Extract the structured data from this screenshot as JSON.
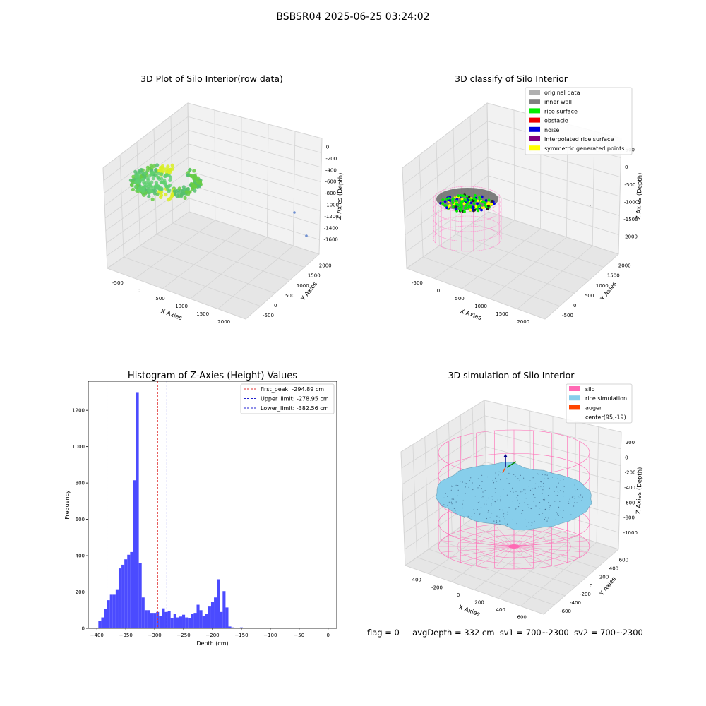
{
  "suptitle": "BSBSR04 2025-06-25 03:24:02",
  "footer": {
    "flag": "flag = 0",
    "avg_depth": "avgDepth = 332 cm",
    "sv1": "sv1 = 700~2300",
    "sv2": "sv2 = 700~2300"
  },
  "colors": {
    "bar": "#4b4bff",
    "first_peak_line": "#e03030",
    "limit_line": "#2020d0",
    "silo": "#ff69b4",
    "rice_simulation": "#87ceeb",
    "auger": "#ff4500",
    "rice_surface": "#00ee00",
    "inner_wall": "#808080",
    "noise": "#0000dd",
    "symmetric": "#ffff00",
    "raw_green": "#66cc44",
    "raw_yellow": "#d8ee22"
  },
  "chart_data": [
    {
      "type": "scatter",
      "title": "3D Plot of Silo Interior(row data)",
      "xlabel": "X Axies",
      "ylabel": "Y Axies",
      "zlabel": "Z Axies (Depth)",
      "x_ticks": [
        "-500",
        "0",
        "500",
        "1000",
        "1500",
        "2000"
      ],
      "y_ticks": [
        "-500",
        "0",
        "500",
        "1000",
        "1500",
        "2000"
      ],
      "z_ticks": [
        "0",
        "-200",
        "-400",
        "-600",
        "-800",
        "-1000",
        "-1200",
        "-1400",
        "-1600"
      ],
      "grid": true
    },
    {
      "type": "scatter",
      "title": "3D classify of Silo Interior",
      "xlabel": "X Axies",
      "ylabel": "Y Axies",
      "zlabel": "Z Axies (Depth)",
      "x_ticks": [
        "-500",
        "0",
        "500",
        "1000",
        "1500",
        "2000"
      ],
      "y_ticks": [
        "-500",
        "0",
        "500",
        "1000",
        "1500",
        "2000"
      ],
      "z_ticks": [
        "500",
        "0",
        "-500",
        "-1000",
        "-1500",
        "-2000"
      ],
      "legend_position": "top-right",
      "legend": [
        {
          "label": "original data",
          "color": "#b0b0b0"
        },
        {
          "label": "inner wall",
          "color": "#808080"
        },
        {
          "label": "rice surface",
          "color": "#00ee00"
        },
        {
          "label": "obstacle",
          "color": "#ee0000"
        },
        {
          "label": "noise",
          "color": "#0000dd"
        },
        {
          "label": "interpolated rice surface",
          "color": "#800080"
        },
        {
          "label": "symmetric generated points",
          "color": "#ffff00"
        }
      ],
      "grid": true
    },
    {
      "type": "bar",
      "title": "Histogram of Z-Axies (Height) Values",
      "xlabel": "Depth (cm)",
      "ylabel": "Frequency",
      "xlim": [
        -415,
        15
      ],
      "ylim": [
        0,
        1360
      ],
      "x_ticks": [
        -400,
        -350,
        -300,
        -250,
        -200,
        -150,
        -100,
        -50,
        0
      ],
      "y_ticks": [
        0,
        200,
        400,
        600,
        800,
        1000,
        1200
      ],
      "bin_start": -397.5,
      "bin_width": 5,
      "values": [
        40,
        60,
        105,
        155,
        185,
        185,
        215,
        330,
        350,
        380,
        405,
        420,
        815,
        1300,
        360,
        170,
        100,
        100,
        85,
        85,
        90,
        70,
        110,
        90,
        95,
        55,
        80,
        60,
        65,
        75,
        60,
        55,
        80,
        85,
        130,
        100,
        70,
        80,
        120,
        145,
        170,
        270,
        90,
        205,
        115,
        10,
        5,
        0,
        0,
        5
      ],
      "vlines": [
        {
          "label": "first_peak: -294.89 cm",
          "x": -294.89,
          "color": "#e03030"
        },
        {
          "label": "Upper_limit: -278.95 cm",
          "x": -278.95,
          "color": "#2020d0"
        },
        {
          "label": "Lower_limit: -382.56 cm",
          "x": -382.56,
          "color": "#2020d0"
        }
      ],
      "legend_position": "top-right"
    },
    {
      "type": "scatter",
      "title": "3D simulation of Silo Interior",
      "xlabel": "X Axies",
      "ylabel": "Y Axies",
      "zlabel": "Z Axies (Depth)",
      "x_ticks": [
        "-400",
        "-200",
        "0",
        "200",
        "400",
        "600"
      ],
      "y_ticks": [
        "-600",
        "-400",
        "-200",
        "0",
        "200",
        "400",
        "600"
      ],
      "z_ticks": [
        "200",
        "0",
        "-200",
        "-400",
        "-600",
        "-800",
        "-1000"
      ],
      "legend_position": "top-right",
      "legend": [
        {
          "label": "silo",
          "color": "#ff69b4"
        },
        {
          "label": "rice simulation",
          "color": "#87ceeb"
        },
        {
          "label": "auger",
          "color": "#ff4500"
        },
        {
          "label": "center(95,-19)",
          "color": ""
        }
      ],
      "grid": true
    }
  ]
}
